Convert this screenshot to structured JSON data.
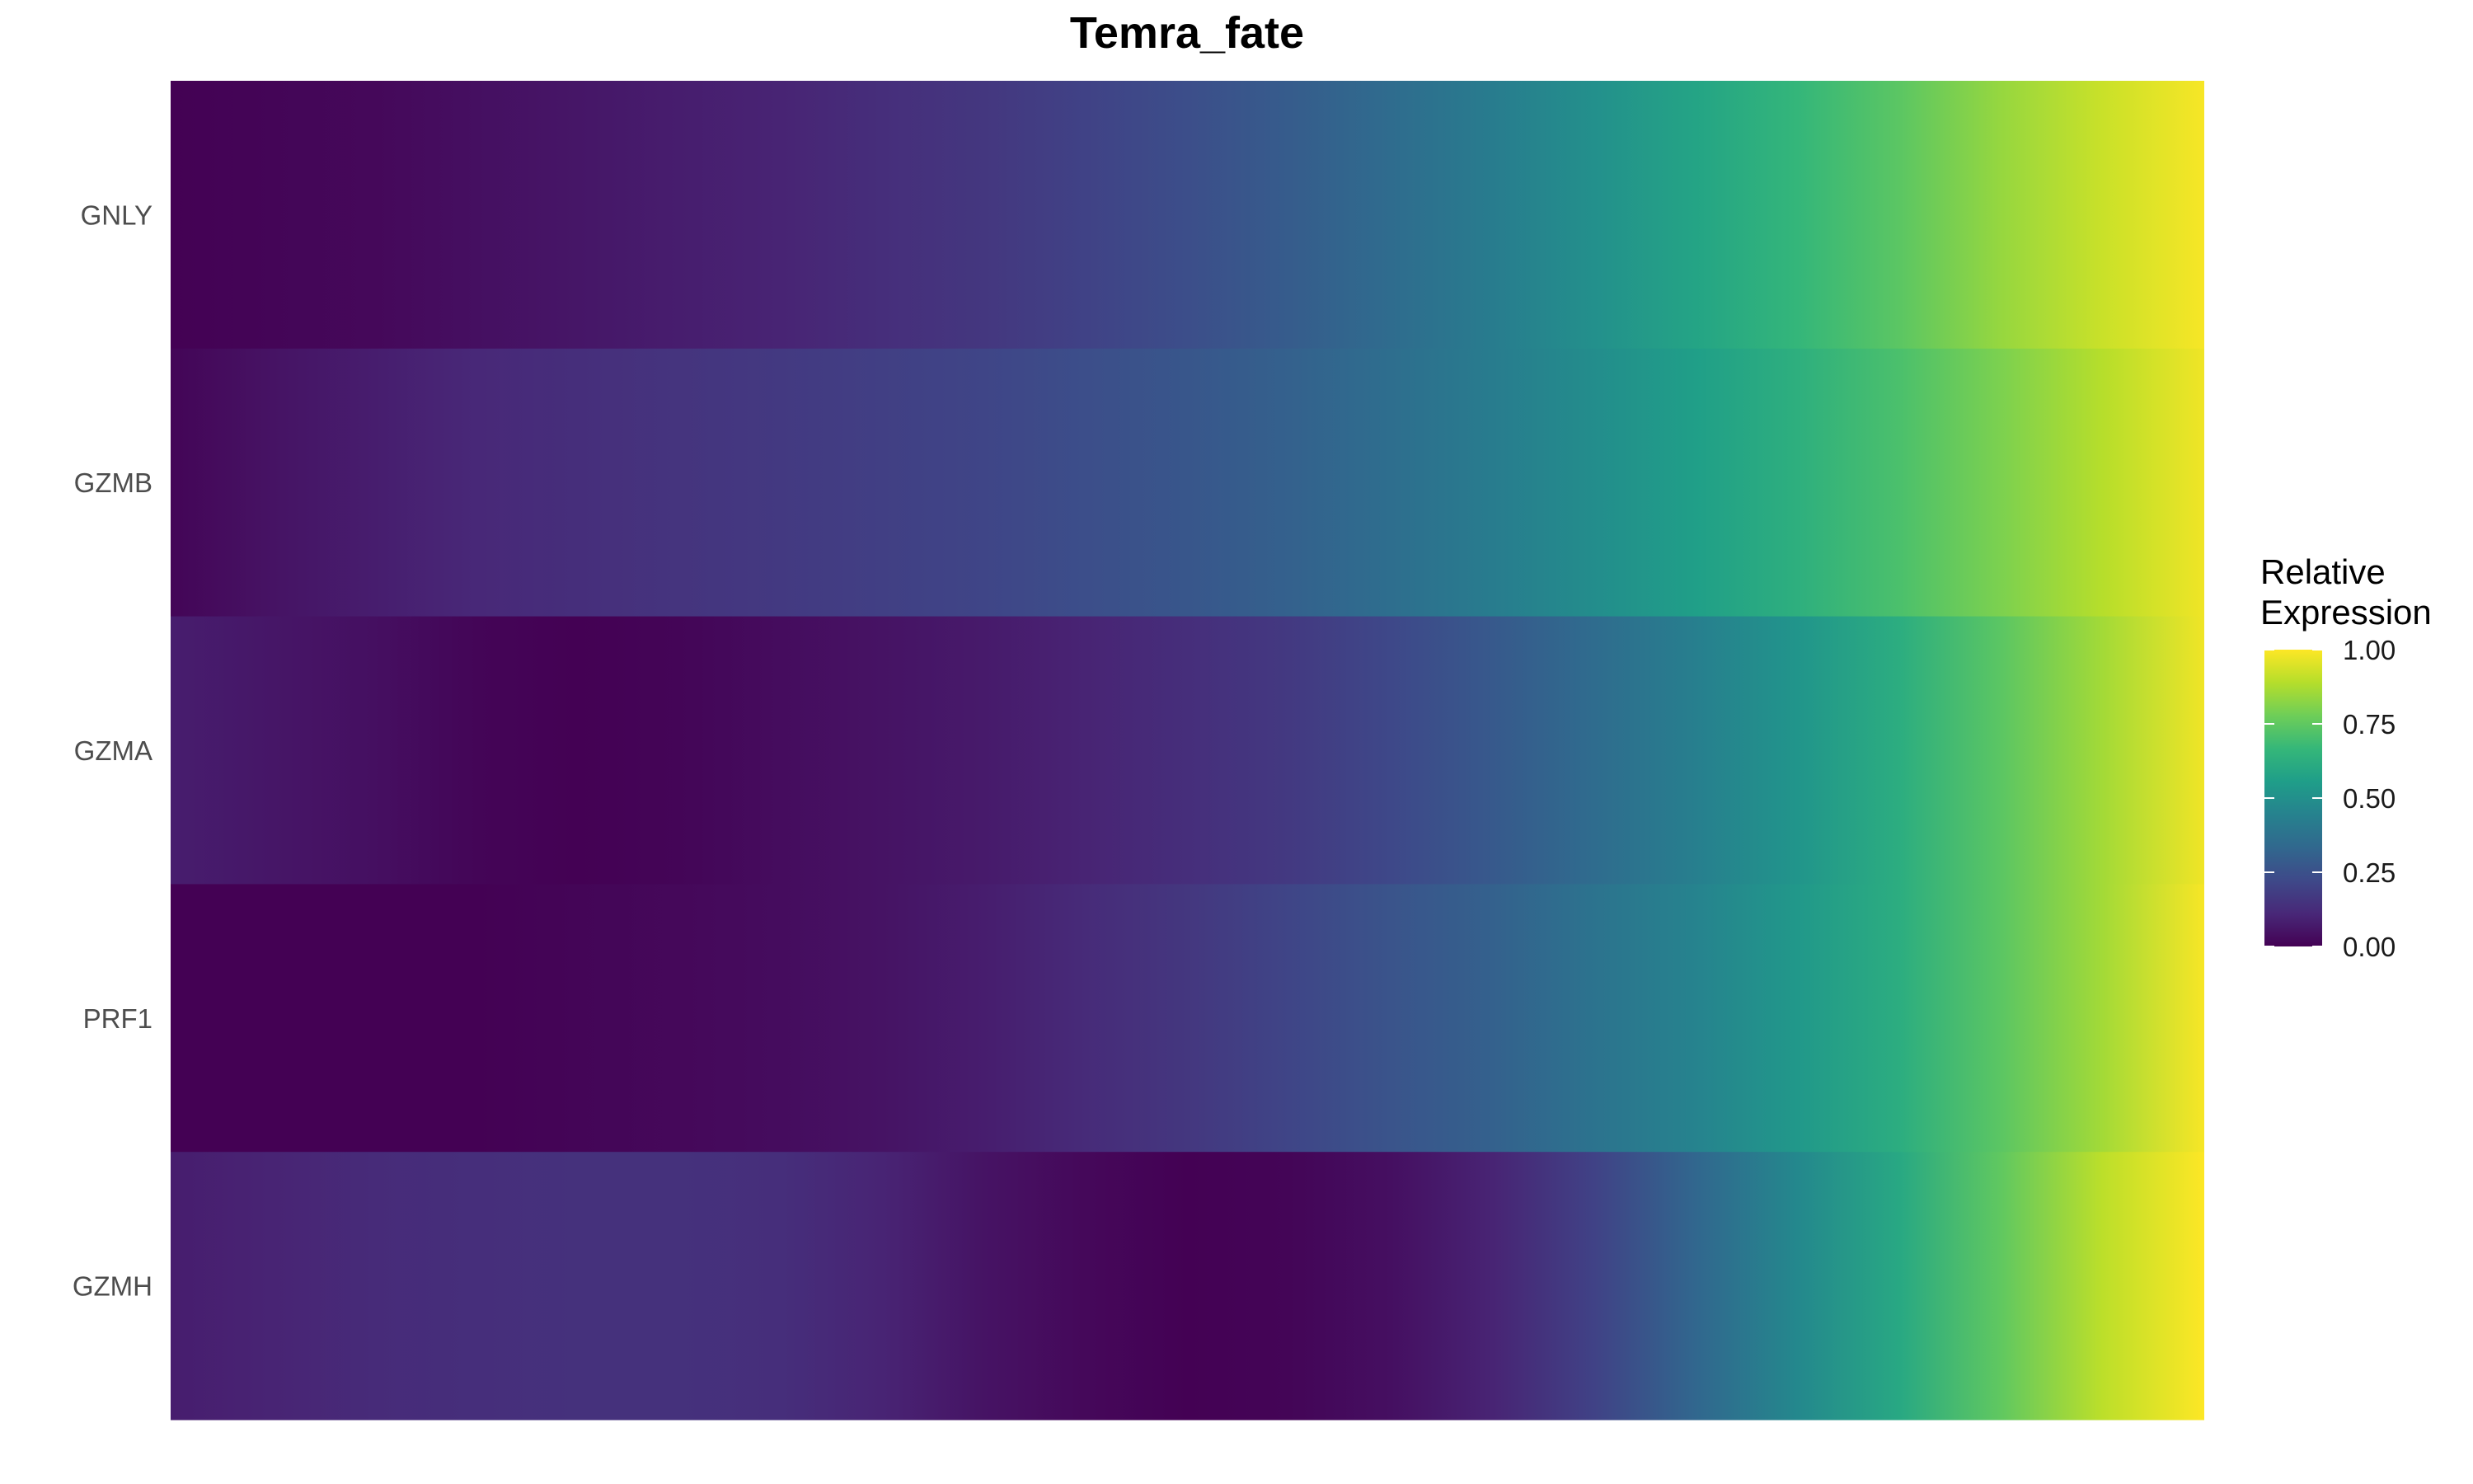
{
  "chart_data": {
    "type": "heatmap",
    "title": "Temra_fate",
    "rows": [
      "GNLY",
      "GZMB",
      "GZMA",
      "PRF1",
      "GZMH"
    ],
    "xlabel": "",
    "ylabel": "",
    "x_positions": [
      0,
      0.05,
      0.1,
      0.15,
      0.2,
      0.25,
      0.3,
      0.35,
      0.4,
      0.45,
      0.5,
      0.55,
      0.6,
      0.65,
      0.7,
      0.75,
      0.8,
      0.85,
      0.9,
      0.95,
      1
    ],
    "values": [
      [
        0.0,
        0.01,
        0.02,
        0.04,
        0.06,
        0.08,
        0.1,
        0.13,
        0.16,
        0.2,
        0.24,
        0.29,
        0.35,
        0.42,
        0.5,
        0.58,
        0.66,
        0.74,
        0.84,
        0.92,
        0.99
      ],
      [
        0.01,
        0.05,
        0.08,
        0.11,
        0.13,
        0.15,
        0.17,
        0.19,
        0.21,
        0.24,
        0.27,
        0.31,
        0.36,
        0.42,
        0.49,
        0.56,
        0.63,
        0.71,
        0.8,
        0.89,
        0.98
      ],
      [
        0.08,
        0.06,
        0.04,
        0.01,
        0.0,
        0.01,
        0.03,
        0.05,
        0.07,
        0.1,
        0.13,
        0.17,
        0.22,
        0.28,
        0.35,
        0.43,
        0.52,
        0.62,
        0.74,
        0.86,
        0.98
      ],
      [
        0.0,
        0.0,
        0.0,
        0.0,
        0.01,
        0.02,
        0.03,
        0.05,
        0.08,
        0.12,
        0.16,
        0.21,
        0.26,
        0.31,
        0.38,
        0.45,
        0.53,
        0.62,
        0.74,
        0.86,
        0.99
      ],
      [
        0.08,
        0.1,
        0.12,
        0.13,
        0.14,
        0.14,
        0.13,
        0.1,
        0.05,
        0.02,
        0.0,
        0.01,
        0.04,
        0.1,
        0.2,
        0.33,
        0.47,
        0.6,
        0.75,
        0.9,
        1.0
      ]
    ],
    "color_scale": {
      "name": "viridis",
      "stops": [
        "#440154",
        "#482878",
        "#3e4989",
        "#31688e",
        "#26828e",
        "#1f9e89",
        "#35b779",
        "#6ece58",
        "#b5de2b",
        "#fde725"
      ],
      "range": [
        0,
        1
      ]
    },
    "legend": {
      "title_lines": [
        "Relative",
        "Expression"
      ],
      "ticks": [
        {
          "value": 1.0,
          "label": "1.00"
        },
        {
          "value": 0.75,
          "label": "0.75"
        },
        {
          "value": 0.5,
          "label": "0.50"
        },
        {
          "value": 0.25,
          "label": "0.25"
        },
        {
          "value": 0.0,
          "label": "0.00"
        }
      ],
      "position": "right"
    },
    "grid": false
  }
}
